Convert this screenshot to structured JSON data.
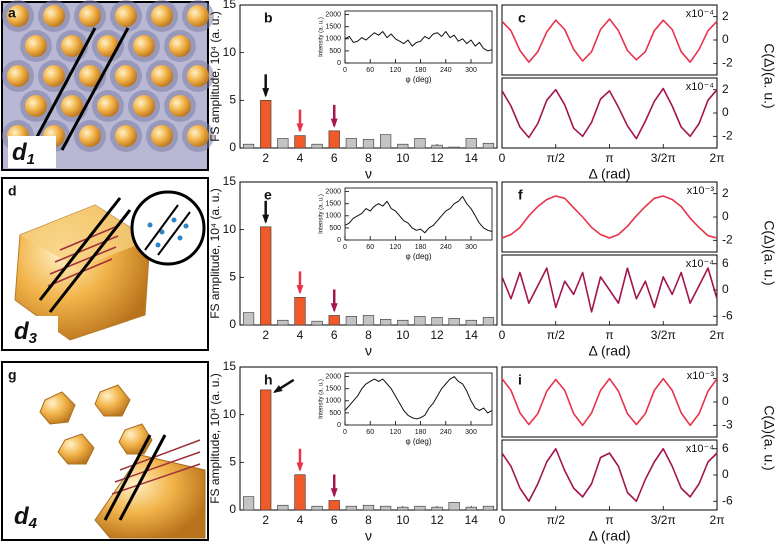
{
  "image_panels": [
    {
      "label": "a",
      "name": "d",
      "subscript": "1"
    },
    {
      "label": "d",
      "name": "d",
      "subscript": "3"
    },
    {
      "label": "g",
      "name": "d",
      "subscript": "4"
    }
  ],
  "chart_data": [
    {
      "type": "bar",
      "panel_label": "b",
      "x": [
        1,
        2,
        3,
        4,
        5,
        6,
        7,
        8,
        9,
        10,
        11,
        12,
        13,
        14,
        15
      ],
      "values": [
        0.4,
        5.0,
        1.0,
        1.3,
        0.4,
        1.8,
        1.0,
        0.9,
        1.4,
        0.4,
        1.0,
        0.3,
        0.1,
        1.0,
        0.5
      ],
      "colors": [
        "#c4c4c4",
        "#f05a28",
        "#c4c4c4",
        "#f05a28",
        "#c4c4c4",
        "#f05a28",
        "#c4c4c4",
        "#c4c4c4",
        "#c4c4c4",
        "#c4c4c4",
        "#c4c4c4",
        "#c4c4c4",
        "#c4c4c4",
        "#c4c4c4",
        "#c4c4c4"
      ],
      "arrows": [
        {
          "x": 2,
          "color": "#111111"
        },
        {
          "x": 4,
          "color": "#e8334a"
        },
        {
          "x": 6,
          "color": "#a3154e"
        }
      ],
      "xlim": [
        0.5,
        15.5
      ],
      "xticks": [
        2,
        4,
        6,
        8,
        10,
        12,
        14
      ],
      "ylim": [
        0,
        15
      ],
      "yticks": [
        0,
        5,
        10,
        15
      ],
      "xlabel": "ν",
      "ylabel": "FS amplitude, 10⁴ (a. u.)"
    },
    {
      "type": "line",
      "x": [
        0,
        10,
        20,
        30,
        40,
        50,
        60,
        70,
        80,
        90,
        100,
        110,
        120,
        130,
        140,
        150,
        160,
        170,
        180,
        190,
        200,
        210,
        220,
        230,
        240,
        250,
        260,
        270,
        280,
        290,
        300,
        310,
        320,
        330,
        340,
        350
      ],
      "values": [
        1000,
        1100,
        850,
        900,
        1050,
        950,
        1100,
        1250,
        1150,
        1300,
        1050,
        1200,
        1000,
        900,
        800,
        950,
        700,
        850,
        900,
        1100,
        1000,
        1200,
        1250,
        1100,
        1300,
        1050,
        1150,
        900,
        1000,
        800,
        950,
        700,
        850,
        600,
        500,
        550
      ],
      "color": "#111111",
      "xlim": [
        0,
        350
      ],
      "xticks": [
        0,
        60,
        120,
        180,
        240,
        300
      ],
      "ylim": [
        0,
        2150
      ],
      "yticks": [
        0,
        500,
        1000,
        1500,
        2000
      ],
      "xlabel": "φ (deg)",
      "ylabel": "Intensity (a. u.)"
    },
    {
      "type": "line",
      "panel_label": "c",
      "scale_label": "x10⁻⁴",
      "y_side": "right",
      "ylabel": "C(Δ)(a. u.)",
      "x": [
        0,
        0.262,
        0.524,
        0.785,
        1.047,
        1.309,
        1.571,
        1.833,
        2.094,
        2.356,
        2.618,
        2.88,
        3.142,
        3.403,
        3.665,
        3.927,
        4.189,
        4.451,
        4.712,
        4.974,
        5.236,
        5.498,
        5.76,
        6.021,
        6.283
      ],
      "values": [
        1.6,
        0.8,
        -0.9,
        -1.9,
        -1.0,
        0.7,
        1.7,
        0.9,
        -0.8,
        -1.8,
        -1.0,
        0.9,
        1.8,
        0.8,
        -0.9,
        -1.7,
        -1.0,
        0.8,
        1.7,
        0.9,
        -1.0,
        -1.9,
        -0.8,
        0.8,
        1.6
      ],
      "color": "#e8334a",
      "xlim": [
        0,
        6.2832
      ],
      "ylim": [
        -3,
        3
      ],
      "yticks": [
        -2,
        0,
        2
      ]
    },
    {
      "type": "line",
      "scale_label": "x10⁻⁴",
      "y_side": "right",
      "x": [
        0,
        0.262,
        0.524,
        0.785,
        1.047,
        1.309,
        1.571,
        1.833,
        2.094,
        2.356,
        2.618,
        2.88,
        3.142,
        3.403,
        3.665,
        3.927,
        4.189,
        4.451,
        4.712,
        4.974,
        5.236,
        5.498,
        5.76,
        6.021,
        6.283
      ],
      "values": [
        1.9,
        0.6,
        -1.2,
        -2.1,
        -0.9,
        1.1,
        2.0,
        0.7,
        -1.3,
        -2.0,
        -0.8,
        1.2,
        1.9,
        0.5,
        -1.1,
        -2.2,
        -0.7,
        1.0,
        2.1,
        0.6,
        -1.2,
        -2.0,
        -0.9,
        1.1,
        2.0
      ],
      "color": "#a3154e",
      "xlim": [
        0,
        6.2832
      ],
      "ylim": [
        -3,
        3
      ],
      "yticks": [
        -2,
        0,
        2
      ],
      "xticks": [
        0,
        {
          "value": 1.5708,
          "label": "π/2"
        },
        {
          "value": 3.1416,
          "label": "π"
        },
        {
          "value": 4.7124,
          "label": "3/2π"
        },
        {
          "value": 6.2832,
          "label": "2π"
        }
      ],
      "xlabel": "Δ (rad)"
    },
    {
      "type": "bar",
      "panel_label": "e",
      "x": [
        1,
        2,
        3,
        4,
        5,
        6,
        7,
        8,
        9,
        10,
        11,
        12,
        13,
        14,
        15
      ],
      "values": [
        1.3,
        10.3,
        0.5,
        2.9,
        0.4,
        1.0,
        0.9,
        1.0,
        0.6,
        0.5,
        0.9,
        0.8,
        0.7,
        0.5,
        0.8
      ],
      "colors": [
        "#c4c4c4",
        "#f05a28",
        "#c4c4c4",
        "#f05a28",
        "#c4c4c4",
        "#f05a28",
        "#c4c4c4",
        "#c4c4c4",
        "#c4c4c4",
        "#c4c4c4",
        "#c4c4c4",
        "#c4c4c4",
        "#c4c4c4",
        "#c4c4c4",
        "#c4c4c4"
      ],
      "arrows": [
        {
          "x": 2,
          "color": "#111111"
        },
        {
          "x": 4,
          "color": "#e8334a"
        },
        {
          "x": 6,
          "color": "#a3154e"
        }
      ],
      "xlim": [
        0.5,
        15.5
      ],
      "xticks": [
        2,
        4,
        6,
        8,
        10,
        12,
        14
      ],
      "ylim": [
        0,
        15
      ],
      "yticks": [
        0,
        5,
        10,
        15
      ],
      "xlabel": "ν",
      "ylabel": "FS amplitude, 10⁴ (a. u.)"
    },
    {
      "type": "line",
      "x": [
        0,
        10,
        20,
        30,
        40,
        50,
        60,
        70,
        80,
        90,
        100,
        110,
        120,
        130,
        140,
        150,
        160,
        170,
        180,
        190,
        200,
        210,
        220,
        230,
        240,
        250,
        260,
        270,
        280,
        290,
        300,
        310,
        320,
        330,
        340,
        350
      ],
      "values": [
        600,
        700,
        900,
        1000,
        1100,
        1300,
        1200,
        1400,
        1500,
        1400,
        1600,
        1300,
        1200,
        1000,
        800,
        700,
        500,
        400,
        450,
        300,
        500,
        600,
        800,
        1000,
        1200,
        1300,
        1500,
        1600,
        1800,
        1500,
        1300,
        1000,
        700,
        500,
        400,
        350
      ],
      "color": "#111111",
      "xlim": [
        0,
        350
      ],
      "xticks": [
        0,
        60,
        120,
        180,
        240,
        300
      ],
      "ylim": [
        0,
        2150
      ],
      "yticks": [
        0,
        500,
        1000,
        1500,
        2000
      ],
      "xlabel": "φ (deg)",
      "ylabel": "Intensity (a. u.)"
    },
    {
      "type": "line",
      "panel_label": "f",
      "scale_label": "x10⁻³",
      "y_side": "right",
      "ylabel": "C(Δ)(a. u.)",
      "x": [
        0,
        0.262,
        0.524,
        0.785,
        1.047,
        1.309,
        1.571,
        1.833,
        2.094,
        2.356,
        2.618,
        2.88,
        3.142,
        3.403,
        3.665,
        3.927,
        4.189,
        4.451,
        4.712,
        4.974,
        5.236,
        5.498,
        5.76,
        6.021,
        6.283
      ],
      "values": [
        -1.8,
        -1.5,
        -0.9,
        0.1,
        0.9,
        1.5,
        1.8,
        1.6,
        0.8,
        0.0,
        -0.9,
        -1.5,
        -1.8,
        -1.5,
        -0.8,
        0.1,
        0.9,
        1.6,
        1.8,
        1.5,
        0.9,
        -0.1,
        -0.9,
        -1.6,
        -1.8
      ],
      "color": "#e8334a",
      "xlim": [
        0,
        6.2832
      ],
      "ylim": [
        -3,
        3
      ],
      "yticks": [
        -2,
        0,
        2
      ]
    },
    {
      "type": "line",
      "scale_label": "x10⁻⁴",
      "y_side": "right",
      "x": [
        0,
        0.262,
        0.524,
        0.785,
        1.047,
        1.309,
        1.571,
        1.833,
        2.094,
        2.356,
        2.618,
        2.88,
        3.142,
        3.403,
        3.665,
        3.927,
        4.189,
        4.451,
        4.712,
        4.974,
        5.236,
        5.498,
        5.76,
        6.021,
        6.283
      ],
      "values": [
        3,
        -2,
        4,
        -3,
        1,
        5,
        -4,
        2,
        -1,
        4,
        -5,
        3,
        0,
        -3,
        5,
        -2,
        2,
        -4,
        3,
        -1,
        4,
        -3,
        1,
        5,
        -2
      ],
      "color": "#a3154e",
      "xlim": [
        0,
        6.2832
      ],
      "ylim": [
        -8,
        8
      ],
      "yticks": [
        -6,
        0,
        6
      ],
      "xticks": [
        0,
        {
          "value": 1.5708,
          "label": "π/2"
        },
        {
          "value": 3.1416,
          "label": "π"
        },
        {
          "value": 4.7124,
          "label": "3/2π"
        },
        {
          "value": 6.2832,
          "label": "2π"
        }
      ],
      "xlabel": "Δ (rad)"
    },
    {
      "type": "bar",
      "panel_label": "h",
      "x": [
        1,
        2,
        3,
        4,
        5,
        6,
        7,
        8,
        9,
        10,
        11,
        12,
        13,
        14,
        15
      ],
      "values": [
        1.4,
        12.6,
        0.5,
        3.7,
        0.4,
        1.0,
        0.4,
        0.5,
        0.4,
        0.3,
        0.4,
        0.3,
        0.8,
        0.3,
        0.4
      ],
      "colors": [
        "#c4c4c4",
        "#f05a28",
        "#c4c4c4",
        "#f05a28",
        "#c4c4c4",
        "#f05a28",
        "#c4c4c4",
        "#c4c4c4",
        "#c4c4c4",
        "#c4c4c4",
        "#c4c4c4",
        "#c4c4c4",
        "#c4c4c4",
        "#c4c4c4",
        "#c4c4c4"
      ],
      "arrows": [
        {
          "x": 2,
          "color": "#111111"
        },
        {
          "x": 4,
          "color": "#e8334a"
        },
        {
          "x": 6,
          "color": "#a3154e"
        }
      ],
      "xlim": [
        0.5,
        15.5
      ],
      "xticks": [
        2,
        4,
        6,
        8,
        10,
        12,
        14
      ],
      "ylim": [
        0,
        15
      ],
      "yticks": [
        0,
        5,
        10,
        15
      ],
      "xlabel": "ν",
      "ylabel": "FS amplitude, 10⁴ (a. u.)"
    },
    {
      "type": "line",
      "x": [
        0,
        10,
        20,
        30,
        40,
        50,
        60,
        70,
        80,
        90,
        100,
        110,
        120,
        130,
        140,
        150,
        160,
        170,
        180,
        190,
        200,
        210,
        220,
        230,
        240,
        250,
        260,
        270,
        280,
        290,
        300,
        310,
        320,
        330,
        340,
        350
      ],
      "values": [
        600,
        800,
        1000,
        1200,
        1500,
        1700,
        1800,
        1900,
        1800,
        1900,
        1700,
        1500,
        1200,
        900,
        600,
        400,
        300,
        250,
        300,
        400,
        700,
        900,
        1200,
        1500,
        1700,
        1900,
        2000,
        1800,
        1700,
        1400,
        1000,
        700,
        600,
        700,
        500,
        600
      ],
      "color": "#111111",
      "xlim": [
        0,
        350
      ],
      "xticks": [
        0,
        60,
        120,
        180,
        240,
        300
      ],
      "ylim": [
        0,
        2150
      ],
      "yticks": [
        0,
        500,
        1000,
        1500,
        2000
      ],
      "xlabel": "φ (deg)",
      "ylabel": "Intensity (a. u.)"
    },
    {
      "type": "line",
      "panel_label": "i",
      "scale_label": "x10⁻³",
      "y_side": "right",
      "ylabel": "C(Δ)(a. u.)",
      "x": [
        0,
        0.262,
        0.524,
        0.785,
        1.047,
        1.309,
        1.571,
        1.833,
        2.094,
        2.356,
        2.618,
        2.88,
        3.142,
        3.403,
        3.665,
        3.927,
        4.189,
        4.451,
        4.712,
        4.974,
        5.236,
        5.498,
        5.76,
        6.021,
        6.283
      ],
      "values": [
        3.0,
        1.5,
        -1.4,
        -2.9,
        -1.5,
        1.4,
        2.9,
        1.5,
        -1.5,
        -3.0,
        -1.4,
        1.5,
        3.0,
        1.4,
        -1.5,
        -2.9,
        -1.5,
        1.5,
        3.0,
        1.5,
        -1.4,
        -3.0,
        -1.5,
        1.4,
        3.0
      ],
      "color": "#e8334a",
      "xlim": [
        0,
        6.2832
      ],
      "ylim": [
        -4.5,
        4.5
      ],
      "yticks": [
        -3,
        0,
        3
      ]
    },
    {
      "type": "line",
      "scale_label": "x10⁻⁴",
      "y_side": "right",
      "x": [
        0,
        0.262,
        0.524,
        0.785,
        1.047,
        1.309,
        1.571,
        1.833,
        2.094,
        2.356,
        2.618,
        2.88,
        3.142,
        3.403,
        3.665,
        3.927,
        4.189,
        4.451,
        4.712,
        4.974,
        5.236,
        5.498,
        5.76,
        6.021,
        6.283
      ],
      "values": [
        5,
        2,
        -3,
        -6,
        -2,
        3,
        6,
        1,
        -3,
        -5,
        -2,
        4,
        5,
        2,
        -4,
        -6,
        -1,
        3,
        6,
        2,
        -3,
        -5,
        -2,
        3,
        5
      ],
      "color": "#a3154e",
      "xlim": [
        0,
        6.2832
      ],
      "ylim": [
        -8,
        8
      ],
      "yticks": [
        -6,
        0,
        6
      ],
      "xticks": [
        0,
        {
          "value": 1.5708,
          "label": "π/2"
        },
        {
          "value": 3.1416,
          "label": "π"
        },
        {
          "value": 4.7124,
          "label": "3/2π"
        },
        {
          "value": 6.2832,
          "label": "2π"
        }
      ],
      "xlabel": "Δ (rad)"
    }
  ]
}
